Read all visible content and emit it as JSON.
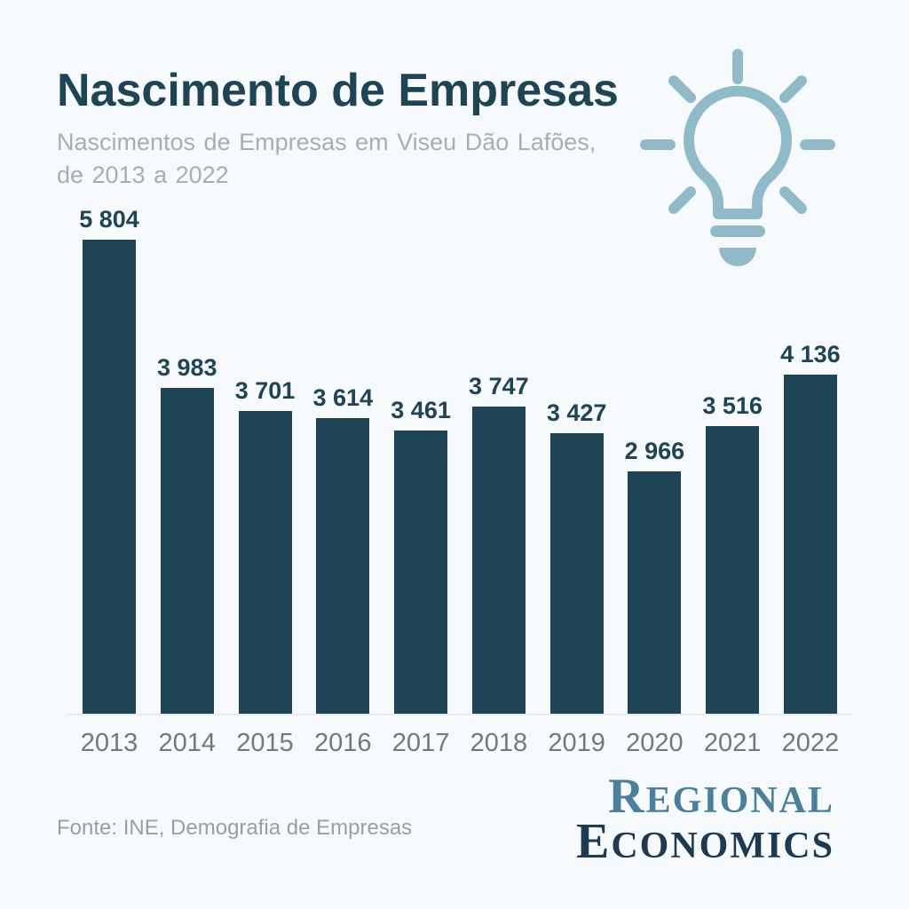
{
  "theme": {
    "background": "#f7fafc",
    "ink": "#1e4456",
    "subtitle_gray": "#abacae",
    "year_gray": "#76777a",
    "source_gray": "#9c9da0",
    "axis_gray": "#e9ebec",
    "bulb_blue": "#91bac9",
    "logo_teal": "#4b7f9b",
    "logo_navy": "#1d3a52"
  },
  "header": {
    "title": "Nascimento de Empresas",
    "subtitle_lines": [
      "Nascimentos de Empresas em Viseu Dão Lafões,",
      "de 2013 a 2022"
    ]
  },
  "icon": {
    "name": "lightbulb-icon",
    "color": "#91bac9"
  },
  "chart_data": {
    "type": "bar",
    "title": "Nascimento de Empresas",
    "subtitle": "Nascimentos de Empresas em Viseu Dão Lafões, de 2013 a 2022",
    "categories": [
      "2013",
      "2014",
      "2015",
      "2016",
      "2017",
      "2018",
      "2019",
      "2020",
      "2021",
      "2022"
    ],
    "values": [
      5804,
      3983,
      3701,
      3614,
      3461,
      3747,
      3427,
      2966,
      3516,
      4136
    ],
    "value_labels": [
      "5 804",
      "3 983",
      "3 701",
      "3 614",
      "3 461",
      "3 747",
      "3 427",
      "2 966",
      "3 516",
      "4 136"
    ],
    "bar_color": "#1e4456",
    "value_label_color": "#1e4456",
    "xlabel": "",
    "ylabel": "",
    "ylim": [
      0,
      5804
    ],
    "grid": false,
    "legend": false
  },
  "footer": {
    "source": "Fonte: INE, Demografia de Empresas",
    "logo_line1": "Regional",
    "logo_line2": "Economics"
  }
}
